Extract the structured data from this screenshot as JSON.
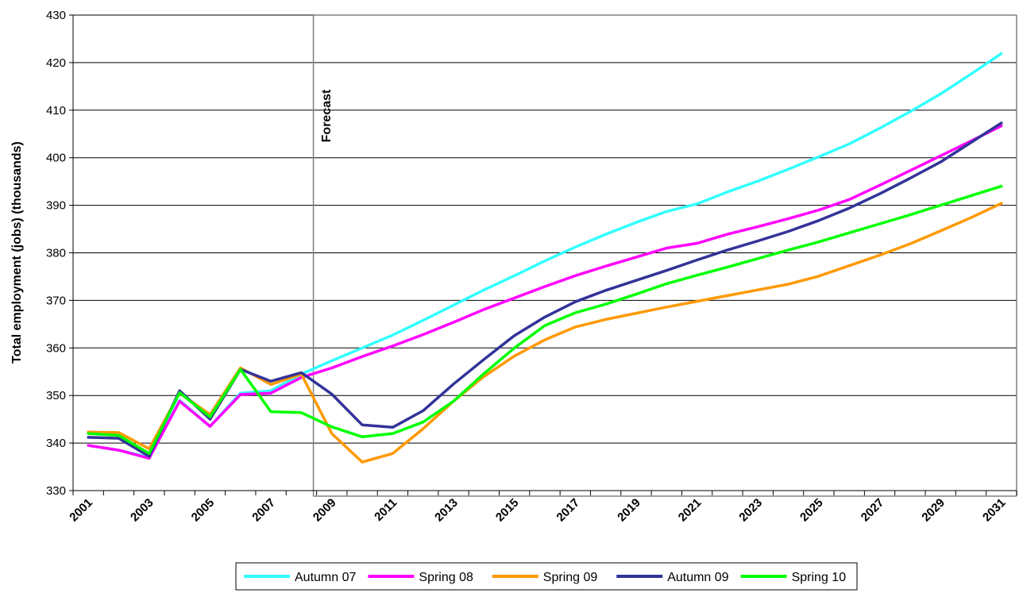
{
  "chart_data": {
    "type": "line",
    "title": "",
    "xlabel": "",
    "ylabel": "Total employment (jobs) (thousands)",
    "ylim": [
      330,
      430
    ],
    "y_ticks": [
      "330",
      "340",
      "350",
      "360",
      "370",
      "380",
      "390",
      "400",
      "410",
      "420",
      "430"
    ],
    "x": [
      2001,
      2002,
      2003,
      2004,
      2005,
      2006,
      2007,
      2008,
      2009,
      2010,
      2011,
      2012,
      2013,
      2014,
      2015,
      2016,
      2017,
      2018,
      2019,
      2020,
      2021,
      2022,
      2023,
      2024,
      2025,
      2026,
      2027,
      2028,
      2029,
      2030,
      2031
    ],
    "x_tick_labels": [
      "2001",
      "2003",
      "2005",
      "2007",
      "2009",
      "2011",
      "2013",
      "2015",
      "2017",
      "2019",
      "2021",
      "2023",
      "2025",
      "2027",
      "2029",
      "2031"
    ],
    "grid": "horizontal",
    "annotation": {
      "text": "Forecast",
      "at_x": 2008
    },
    "legend_position": "bottom",
    "series": [
      {
        "name": "Autumn 07",
        "color": "#33FFFF",
        "values": [
          339.5,
          338.5,
          337,
          349,
          343.5,
          350.5,
          351,
          354.5,
          357.3,
          360,
          362.7,
          365.8,
          369,
          372.2,
          375.2,
          378.3,
          381.2,
          383.9,
          386.4,
          388.7,
          390.3,
          392.8,
          395.1,
          397.6,
          400.2,
          402.9,
          406.2,
          409.7,
          413.4,
          417.6,
          421.9
        ]
      },
      {
        "name": "Spring 08",
        "color": "#FF00FF",
        "values": [
          339.5,
          338.5,
          336.8,
          348.8,
          343.5,
          350.2,
          350.5,
          353.8,
          355.8,
          358.2,
          360.4,
          362.8,
          365.4,
          368.1,
          370.5,
          372.9,
          375.2,
          377.2,
          379.1,
          381,
          382,
          383.9,
          385.5,
          387.2,
          389,
          391.2,
          394.2,
          397.3,
          400.4,
          403.5,
          406.7
        ]
      },
      {
        "name": "Spring 09",
        "color": "#FF9900",
        "values": [
          342.3,
          342.2,
          338.8,
          350.5,
          346,
          355.8,
          352.3,
          354.5,
          342,
          336,
          337.8,
          343,
          348.8,
          354,
          358.3,
          361.7,
          364.4,
          366,
          367.3,
          368.6,
          369.8,
          371,
          372.2,
          373.4,
          375.1,
          377.3,
          379.5,
          381.9,
          384.6,
          387.4,
          390.4
        ]
      },
      {
        "name": "Autumn 09",
        "color": "#333399",
        "values": [
          341.2,
          341,
          337.2,
          351,
          345,
          355.5,
          353,
          354.8,
          350.3,
          343.8,
          343.3,
          346.8,
          352.4,
          357.6,
          362.6,
          366.5,
          369.7,
          372.1,
          374.2,
          376.3,
          378.5,
          380.6,
          382.5,
          384.5,
          386.8,
          389.4,
          392.4,
          395.7,
          399.1,
          403.2,
          407.3
        ]
      },
      {
        "name": "Spring 10",
        "color": "#00FF00",
        "values": [
          342,
          341.6,
          337.8,
          350.6,
          345.5,
          355.5,
          346.6,
          346.4,
          343.4,
          341.3,
          342,
          344.4,
          348.8,
          354.6,
          360,
          364.7,
          367.4,
          369.2,
          371.3,
          373.5,
          375.3,
          377,
          378.8,
          380.6,
          382.3,
          384.2,
          386.1,
          388,
          390,
          392,
          394
        ]
      }
    ]
  }
}
